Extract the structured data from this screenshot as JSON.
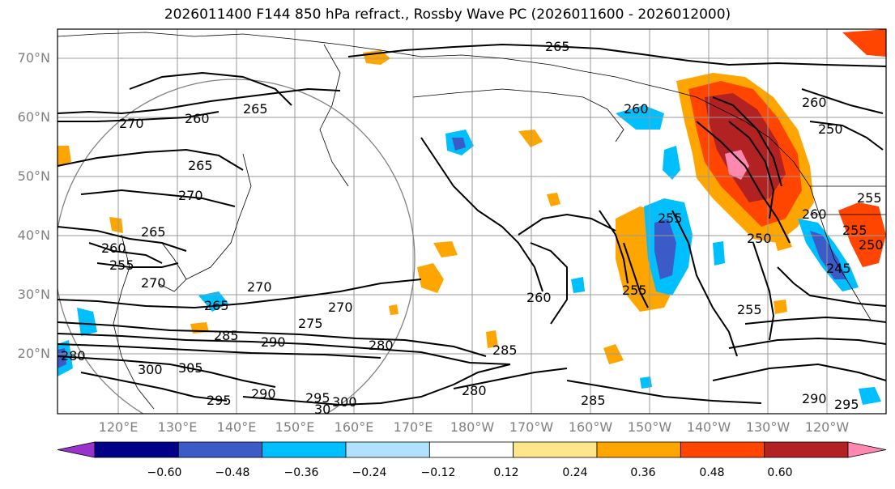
{
  "title": "2026011400 F144 850 hPa refract., Rossby Wave PC (2026011600 - 2026012000)",
  "latitude_labels": [
    "70°N",
    "60°N",
    "50°N",
    "40°N",
    "30°N",
    "20°N"
  ],
  "longitude_labels": [
    "120°E",
    "130°E",
    "140°E",
    "150°E",
    "160°E",
    "170°E",
    "180°W",
    "170°W",
    "160°W",
    "150°W",
    "140°W",
    "130°W",
    "120°W"
  ],
  "contour_labels": [
    "265",
    "260",
    "270",
    "260",
    "265",
    "270",
    "265",
    "260",
    "255",
    "265",
    "270",
    "275",
    "280",
    "285",
    "290",
    "300",
    "305",
    "295",
    "290",
    "295",
    "300",
    "30",
    "280",
    "285",
    "260",
    "255",
    "250",
    "255",
    "250",
    "245",
    "290",
    "295",
    "285",
    "270",
    "260",
    "250",
    "255",
    "265",
    "255",
    "280",
    "270",
    "260",
    "255"
  ],
  "colorbar": {
    "tick_labels": [
      "−0.60",
      "−0.48",
      "−0.36",
      "−0.24",
      "−0.12",
      "0.12",
      "0.24",
      "0.36",
      "0.48",
      "0.60"
    ],
    "colors": [
      "#9933cc",
      "#000088",
      "#3a5bc8",
      "#00bfff",
      "#b0e2ff",
      "#ffffff",
      "#ffe68a",
      "#ffa500",
      "#ff4500",
      "#b22222",
      "#ff88b0"
    ]
  }
}
